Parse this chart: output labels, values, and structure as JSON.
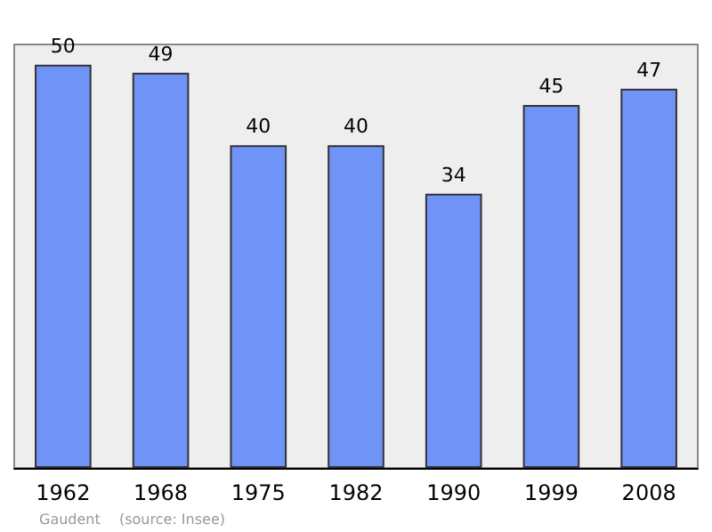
{
  "chart_data": {
    "type": "bar",
    "categories": [
      "1962",
      "1968",
      "1975",
      "1982",
      "1990",
      "1999",
      "2008"
    ],
    "values": [
      50,
      49,
      40,
      40,
      34,
      45,
      47
    ],
    "color": "#7093f7",
    "data_labels": true,
    "annotations": [
      "Gaudent",
      "(source: Insee)"
    ]
  }
}
